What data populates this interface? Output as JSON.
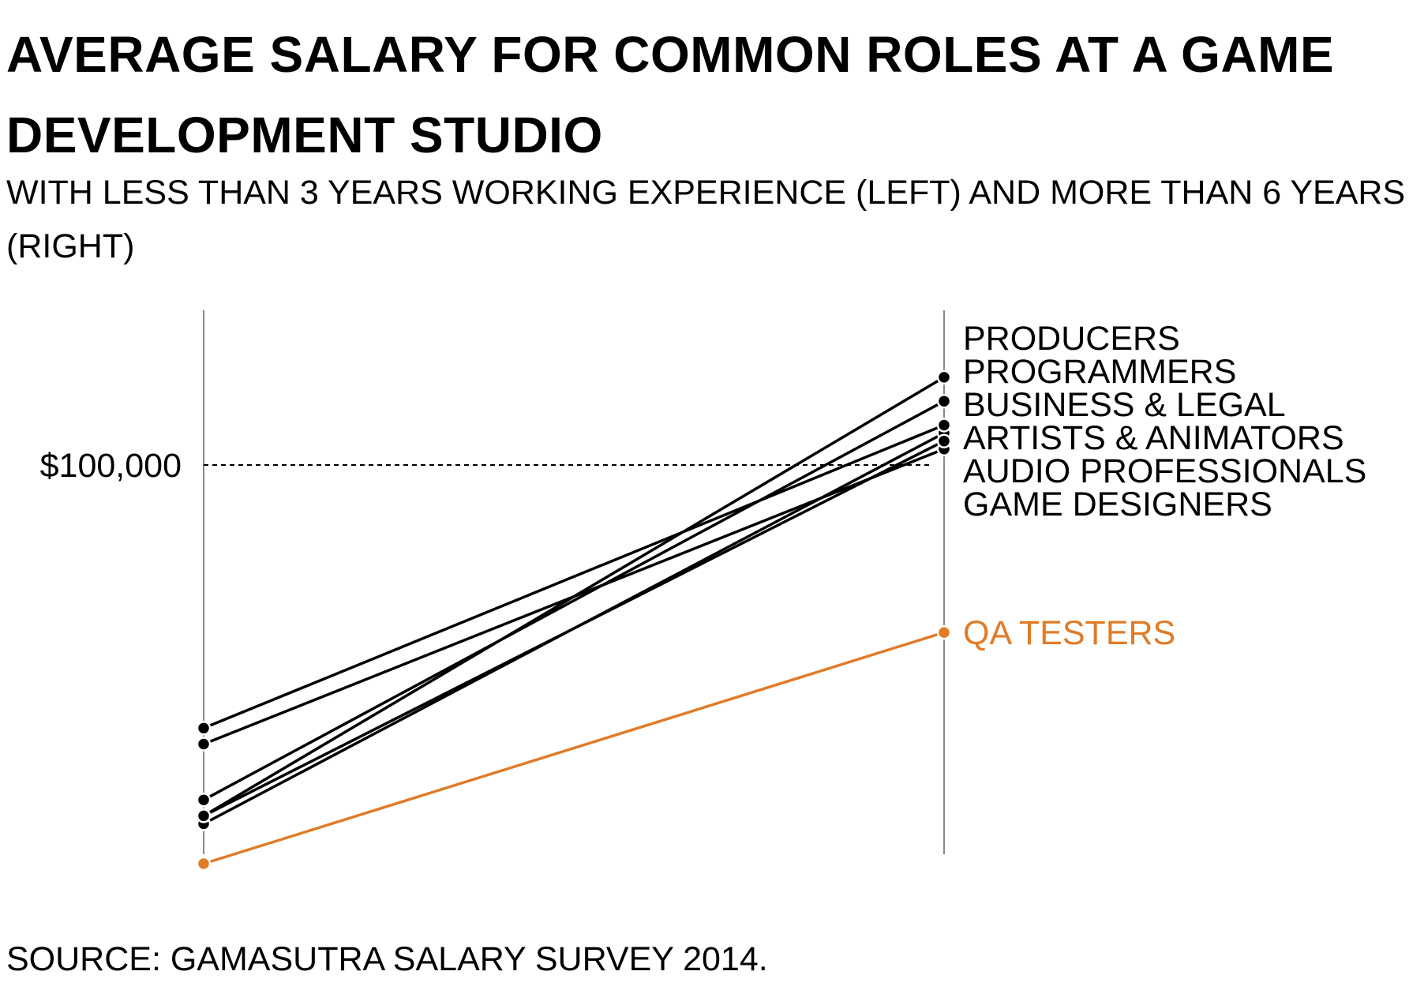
{
  "title": "AVERAGE SALARY FOR COMMON ROLES AT A GAME DEVELOPMENT STUDIO",
  "subtitle": "WITH LESS THAN 3 YEARS WORKING EXPERIENCE (LEFT) AND MORE THAN 6 YEARS (RIGHT)",
  "source": "SOURCE: GAMASUTRA SALARY SURVEY 2014.",
  "colors": {
    "default": "#000000",
    "highlight": "#e07b28",
    "axis": "#888888"
  },
  "chart_data": {
    "type": "line",
    "subtype": "slopegraph",
    "x": [
      "less than 3 years",
      "more than 6 years"
    ],
    "ylim": [
      30000,
      122000
    ],
    "reference_line": {
      "value": 100000,
      "label": "$100,000",
      "style": "dashed"
    },
    "series": [
      {
        "name": "PRODUCERS",
        "values": [
          56000,
          111000
        ],
        "highlight": false
      },
      {
        "name": "PROGRAMMERS",
        "values": [
          58000,
          108000
        ],
        "highlight": false
      },
      {
        "name": "BUSINESS & LEGAL",
        "values": [
          65000,
          102000
        ],
        "highlight": false
      },
      {
        "name": "ARTISTS & ANIMATORS",
        "values": [
          55000,
          104000
        ],
        "highlight": false
      },
      {
        "name": "AUDIO PROFESSIONALS",
        "values": [
          56000,
          103000
        ],
        "highlight": false
      },
      {
        "name": "GAME DESIGNERS",
        "values": [
          67000,
          105000
        ],
        "highlight": false
      },
      {
        "name": "QA TESTERS",
        "values": [
          50000,
          79000
        ],
        "highlight": true
      }
    ]
  }
}
